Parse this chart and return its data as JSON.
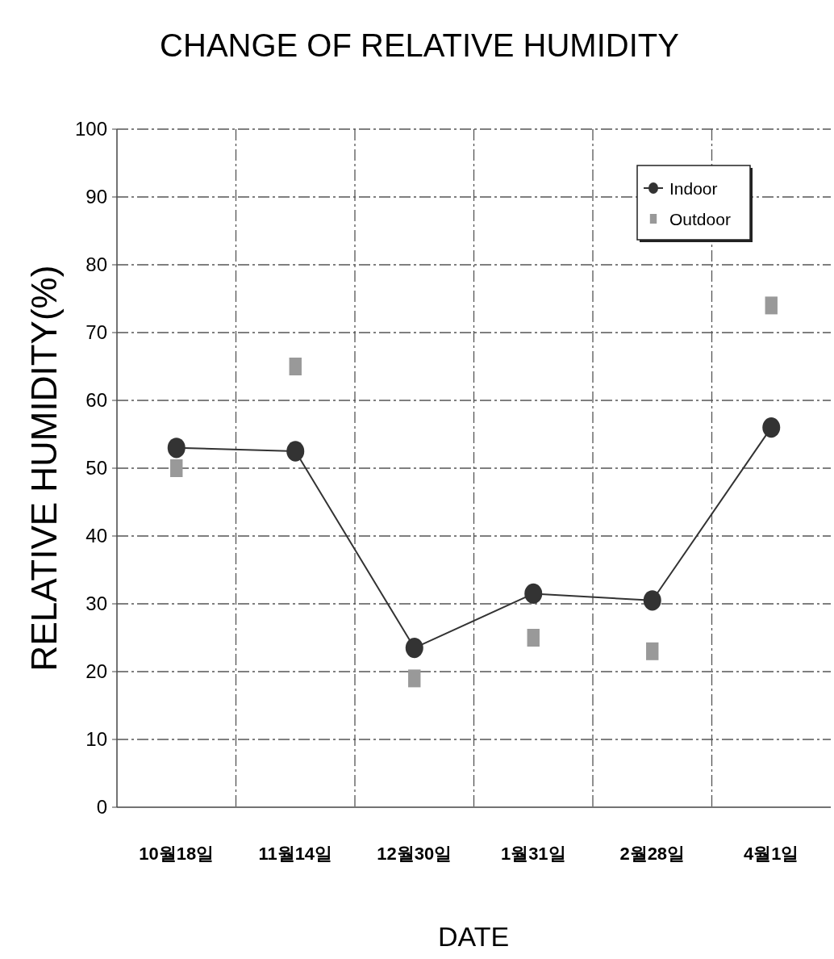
{
  "chart_data": {
    "type": "line",
    "title": "CHANGE OF RELATIVE HUMIDITY",
    "xlabel": "DATE",
    "ylabel": "RELATIVE HUMIDITY(%)",
    "categories": [
      "10월18일",
      "11월14일",
      "12월30일",
      "1월31일",
      "2월28일",
      "4월1일"
    ],
    "series": [
      {
        "name": "Indoor",
        "color": "#333333",
        "type": "line",
        "marker": "circle",
        "line_style": "solid",
        "values": [
          53,
          52.5,
          23.5,
          31.5,
          30.5,
          56
        ]
      },
      {
        "name": "Outdoor",
        "color": "#999999",
        "type": "scatter",
        "marker": "square",
        "values": [
          50,
          65,
          19,
          25,
          23,
          74
        ]
      }
    ],
    "ylim": [
      0,
      100
    ],
    "yticks": [
      0,
      10,
      20,
      30,
      40,
      50,
      60,
      70,
      80,
      90,
      100
    ],
    "grid": true,
    "legend": "top right"
  }
}
